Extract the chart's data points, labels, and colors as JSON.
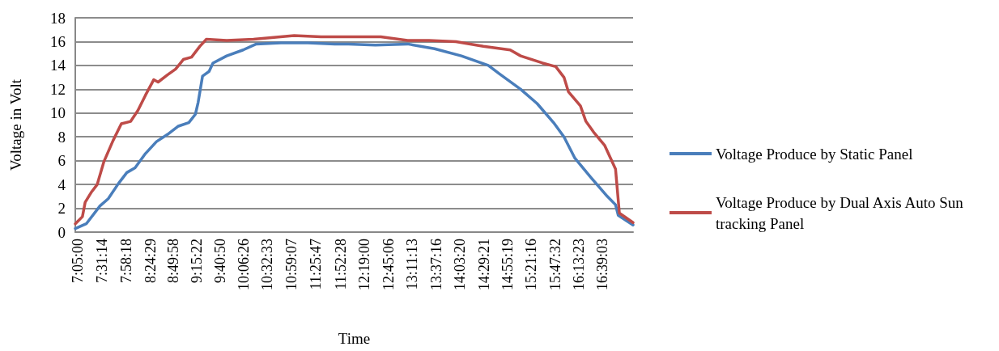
{
  "chart_data": {
    "type": "line",
    "xlabel": "Time",
    "ylabel": "Voltage in Volt",
    "xlim": [
      7.04,
      17.21
    ],
    "ylim": [
      0,
      18
    ],
    "yticks": [
      0,
      2,
      4,
      6,
      8,
      10,
      12,
      14,
      16,
      18
    ],
    "xticks": [
      {
        "value": 7.0833,
        "label": "7:05:00"
      },
      {
        "value": 7.5206,
        "label": "7:31:14"
      },
      {
        "value": 7.9717,
        "label": "7:58:18"
      },
      {
        "value": 8.4081,
        "label": "8:24:29"
      },
      {
        "value": 8.8328,
        "label": "8:49:58"
      },
      {
        "value": 9.2561,
        "label": "9:15:22"
      },
      {
        "value": 9.6806,
        "label": "9:40:50"
      },
      {
        "value": 10.1072,
        "label": "10:06:26"
      },
      {
        "value": 10.5425,
        "label": "10:32:33"
      },
      {
        "value": 10.9853,
        "label": "10:59:07"
      },
      {
        "value": 11.4297,
        "label": "11:25:47"
      },
      {
        "value": 11.8744,
        "label": "11:52:28"
      },
      {
        "value": 12.3167,
        "label": "12:19:00"
      },
      {
        "value": 12.7517,
        "label": "12:45:06"
      },
      {
        "value": 13.1869,
        "label": "13:11:13"
      },
      {
        "value": 13.6211,
        "label": "13:37:16"
      },
      {
        "value": 14.0556,
        "label": "14:03:20"
      },
      {
        "value": 14.4892,
        "label": "14:29:21"
      },
      {
        "value": 14.9219,
        "label": "14:55:19"
      },
      {
        "value": 15.3544,
        "label": "15:21:16"
      },
      {
        "value": 15.7922,
        "label": "15:47:32"
      },
      {
        "value": 16.2231,
        "label": "16:13:23"
      },
      {
        "value": 16.6508,
        "label": "16:39:03"
      }
    ],
    "grid": "y",
    "legend": "right",
    "marker": "none",
    "line_style": "solid",
    "series": [
      {
        "name": "Voltage Produce by Static Panel",
        "color": "#4a7ebb",
        "x": [
          7.04,
          7.24,
          7.49,
          7.64,
          7.83,
          7.98,
          8.13,
          8.32,
          8.52,
          8.72,
          8.92,
          9.11,
          9.23,
          9.28,
          9.36,
          9.48,
          9.55,
          9.8,
          10.1,
          10.34,
          10.79,
          11.28,
          11.77,
          12.02,
          12.51,
          13.1,
          13.59,
          14.08,
          14.57,
          14.77,
          15.16,
          15.46,
          15.76,
          15.95,
          16.15,
          16.44,
          16.74,
          16.89,
          16.94,
          17.21
        ],
        "values": [
          0.3,
          0.7,
          2.2,
          2.8,
          4.1,
          5.0,
          5.4,
          6.6,
          7.6,
          8.2,
          8.9,
          9.2,
          9.9,
          10.9,
          13.1,
          13.5,
          14.2,
          14.8,
          15.3,
          15.8,
          15.9,
          15.9,
          15.8,
          15.8,
          15.7,
          15.8,
          15.4,
          14.8,
          14.0,
          13.3,
          12.0,
          10.8,
          9.2,
          8.0,
          6.2,
          4.6,
          3.0,
          2.3,
          1.4,
          0.6
        ]
      },
      {
        "name": "Voltage Produce by Dual Axis Auto Sun tracking Panel",
        "color": "#be4b48",
        "x": [
          7.04,
          7.17,
          7.22,
          7.34,
          7.44,
          7.56,
          7.73,
          7.88,
          8.05,
          8.18,
          8.32,
          8.47,
          8.55,
          8.72,
          8.87,
          9.01,
          9.16,
          9.31,
          9.43,
          9.8,
          10.29,
          11.03,
          11.52,
          12.02,
          12.61,
          13.1,
          13.49,
          13.98,
          14.48,
          14.97,
          15.16,
          15.56,
          15.8,
          15.95,
          16.03,
          16.25,
          16.35,
          16.49,
          16.69,
          16.89,
          16.96,
          17.21
        ],
        "values": [
          0.7,
          1.3,
          2.5,
          3.4,
          4.0,
          5.9,
          7.7,
          9.1,
          9.3,
          10.2,
          11.5,
          12.8,
          12.6,
          13.2,
          13.7,
          14.5,
          14.7,
          15.6,
          16.2,
          16.1,
          16.2,
          16.5,
          16.4,
          16.4,
          16.4,
          16.1,
          16.1,
          16.0,
          15.6,
          15.3,
          14.8,
          14.2,
          13.9,
          13.0,
          11.8,
          10.6,
          9.3,
          8.4,
          7.3,
          5.3,
          1.6,
          0.8
        ]
      }
    ]
  }
}
